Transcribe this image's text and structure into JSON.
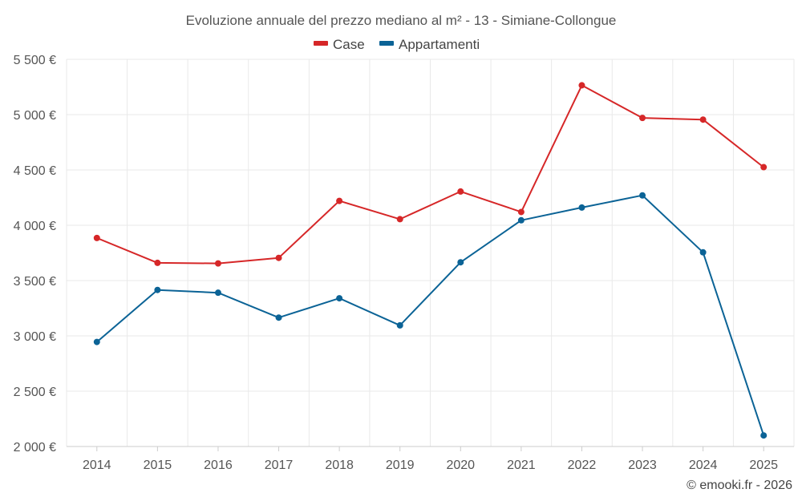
{
  "chart_data": {
    "type": "line",
    "title": "Evoluzione annuale del prezzo mediano al m² - 13 - Simiane-Collongue",
    "x": [
      "2014",
      "2015",
      "2016",
      "2017",
      "2018",
      "2019",
      "2020",
      "2021",
      "2022",
      "2023",
      "2024",
      "2025"
    ],
    "series": [
      {
        "name": "Case",
        "color": "#d62728",
        "values": [
          3885,
          3660,
          3655,
          3705,
          4220,
          4055,
          4305,
          4120,
          5265,
          4970,
          4955,
          4525
        ]
      },
      {
        "name": "Appartamenti",
        "color": "#0b6396",
        "values": [
          2945,
          3415,
          3390,
          3165,
          3340,
          3095,
          3665,
          4045,
          4160,
          4270,
          3755,
          2100
        ]
      }
    ],
    "ylim": [
      2000,
      5500
    ],
    "yticks": [
      2000,
      2500,
      3000,
      3500,
      4000,
      4500,
      5000,
      5500
    ],
    "ytick_labels": [
      "2 000 €",
      "2 500 €",
      "3 000 €",
      "3 500 €",
      "4 000 €",
      "4 500 €",
      "5 000 €",
      "5 500 €"
    ],
    "xlabel": "",
    "ylabel": "",
    "grid": true,
    "legend_position": "top-center"
  },
  "credit": "© emooki.fr - 2026"
}
